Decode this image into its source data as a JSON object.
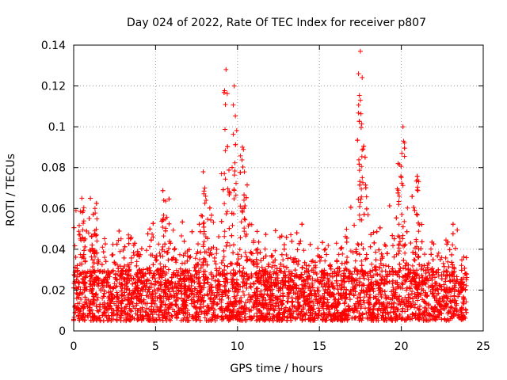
{
  "chart_data": {
    "type": "scatter",
    "title": "Day 024 of 2022, Rate Of TEC Index for receiver p807",
    "xlabel": "GPS time / hours",
    "ylabel": "ROTI / TECUs",
    "xlim": [
      0,
      25
    ],
    "ylim": [
      0,
      0.14
    ],
    "x_ticks": [
      0,
      5,
      10,
      15,
      20,
      25
    ],
    "x_tick_labels": [
      "0",
      "5",
      "10",
      "15",
      "20",
      "25"
    ],
    "y_ticks": [
      0,
      0.02,
      0.04,
      0.06,
      0.08,
      0.1,
      0.12,
      0.14
    ],
    "y_tick_labels": [
      "0",
      "0.02",
      "0.04",
      "0.06",
      "0.08",
      "0.1",
      "0.12",
      "0.14"
    ],
    "grid": true,
    "marker": "+",
    "color": "#ff0000",
    "series": [
      {
        "name": "ROTI",
        "x_range": [
          0,
          24
        ],
        "approx_sample_count": 6000,
        "baseline_range": [
          0.005,
          0.03
        ],
        "peaks": [
          {
            "x": 0.5,
            "y": 0.065
          },
          {
            "x": 1.3,
            "y": 0.06
          },
          {
            "x": 5.5,
            "y": 0.064
          },
          {
            "x": 8.0,
            "y": 0.07
          },
          {
            "x": 9.3,
            "y": 0.128
          },
          {
            "x": 9.8,
            "y": 0.12
          },
          {
            "x": 10.3,
            "y": 0.09
          },
          {
            "x": 17.5,
            "y": 0.137
          },
          {
            "x": 17.5,
            "y": 0.113
          },
          {
            "x": 20.1,
            "y": 0.1
          },
          {
            "x": 19.8,
            "y": 0.082
          },
          {
            "x": 21.0,
            "y": 0.074
          }
        ]
      }
    ]
  }
}
